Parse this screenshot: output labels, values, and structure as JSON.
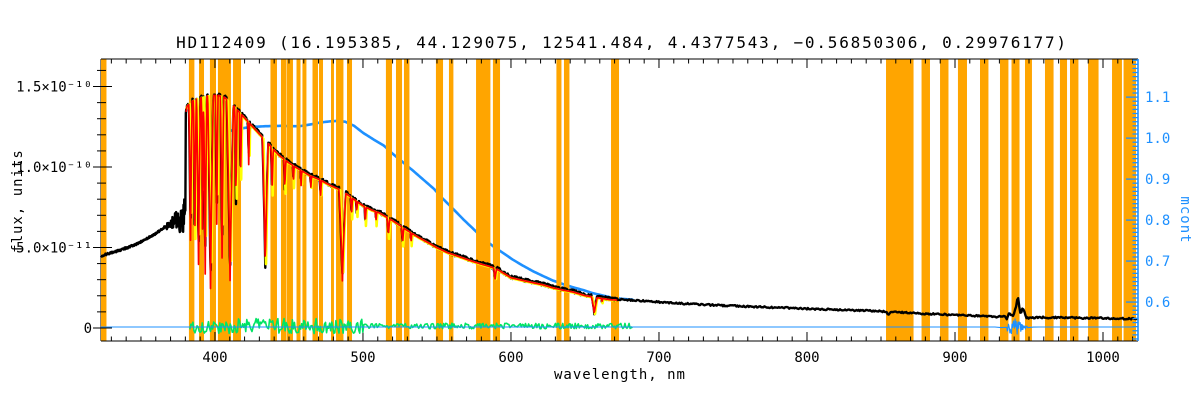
{
  "title": "HD112409  (16.195385, 44.129075, 12541.484, 4.4377543, −0.56850306, 0.29976177)",
  "axes": {
    "x": {
      "label": "wavelength, nm",
      "min": 323.0,
      "max": 1023.65,
      "major_ticks": [
        400,
        500,
        600,
        700,
        800,
        900,
        1000
      ],
      "major_tick_labels": [
        "400",
        "500",
        "600",
        "700",
        "800",
        "900",
        "1000"
      ],
      "minor_step": 10
    },
    "y_left": {
      "label": "flux, units",
      "units_scale": "1e-10",
      "min": -0.081,
      "max": 1.671,
      "major_ticks": [
        0,
        0.5,
        1.0,
        1.5
      ],
      "major_tick_labels": [
        "0",
        "5.0×10⁻¹¹",
        "1.0×10⁻¹⁰",
        "1.5×10⁻¹⁰"
      ],
      "minor_step": 0.1
    },
    "y_right": {
      "label": "mcont",
      "min": 0.505,
      "max": 1.193,
      "major_ticks": [
        0.6,
        0.7,
        0.8,
        0.9,
        1.0,
        1.1
      ],
      "major_tick_labels": [
        "0.6",
        "0.7",
        "0.8",
        "0.9",
        "1.0",
        "1.1"
      ],
      "minor_step": 0.01
    }
  },
  "colors": {
    "background": "#ffffff",
    "frame": "#000000",
    "band": "#ffa500",
    "observed": "#000000",
    "fit_red": "#ff0000",
    "fit_yellow": "#ffff00",
    "residual_green": "#00e464",
    "blue": "#1e90ff"
  },
  "chart_data": {
    "type": "line",
    "x_unit": "nm",
    "flux_units_scale": "1e-10",
    "masked_bands_nm": [
      [
        323.0,
        326.7
      ],
      [
        382.4,
        386.1
      ],
      [
        389.2,
        392.6
      ],
      [
        396.6,
        400.7
      ],
      [
        402.0,
        410.8
      ],
      [
        412.2,
        417.6
      ],
      [
        437.5,
        441.9
      ],
      [
        444.6,
        448.3
      ],
      [
        448.6,
        452.7
      ],
      [
        455.1,
        457.8
      ],
      [
        459.1,
        461.8
      ],
      [
        465.9,
        469.6
      ],
      [
        470.3,
        473.0
      ],
      [
        478.4,
        480.4
      ],
      [
        481.8,
        486.8
      ],
      [
        489.2,
        492.6
      ],
      [
        515.5,
        519.6
      ],
      [
        522.3,
        526.4
      ],
      [
        527.7,
        531.4
      ],
      [
        549.3,
        554.1
      ],
      [
        558.1,
        561.1
      ],
      [
        576.4,
        586.1
      ],
      [
        587.8,
        592.6
      ],
      [
        630.7,
        634.1
      ],
      [
        635.8,
        639.5
      ],
      [
        667.6,
        673.0
      ],
      [
        853.4,
        872.0
      ],
      [
        877.4,
        883.1
      ],
      [
        889.9,
        895.6
      ],
      [
        902.0,
        908.1
      ],
      [
        916.9,
        922.6
      ],
      [
        930.4,
        936.1
      ],
      [
        938.2,
        943.6
      ],
      [
        947.3,
        952.0
      ],
      [
        960.8,
        966.6
      ],
      [
        970.9,
        975.7
      ],
      [
        977.7,
        983.4
      ],
      [
        989.9,
        997.0
      ],
      [
        1006.1,
        1012.8
      ],
      [
        1013.9,
        1022.3
      ]
    ],
    "series": [
      {
        "name": "observed-spectrum",
        "color": "#000000",
        "yaxis": "flux",
        "pre_jump_points": [
          [
            323,
            0.447
          ],
          [
            328,
            0.462
          ],
          [
            334,
            0.478
          ],
          [
            340,
            0.497
          ],
          [
            346,
            0.516
          ],
          [
            352,
            0.544
          ],
          [
            358,
            0.576
          ],
          [
            363,
            0.606
          ],
          [
            367,
            0.63
          ],
          [
            370,
            0.648
          ],
          [
            373,
            0.66
          ],
          [
            376,
            0.672
          ],
          [
            379,
            0.69
          ]
        ],
        "noisy_blob": {
          "range": [
            362,
            380.2
          ],
          "max_amp": 0.115
        },
        "envelope_points": [
          [
            379,
            1.25
          ],
          [
            381,
            1.38
          ],
          [
            384,
            1.41
          ],
          [
            388,
            1.43
          ],
          [
            392,
            1.44
          ],
          [
            397,
            1.45
          ],
          [
            402,
            1.45
          ],
          [
            406,
            1.44
          ],
          [
            410,
            1.41
          ],
          [
            414,
            1.37
          ],
          [
            418,
            1.33
          ],
          [
            424,
            1.27
          ],
          [
            430,
            1.21
          ],
          [
            436,
            1.15
          ],
          [
            443,
            1.08
          ],
          [
            450,
            1.03
          ],
          [
            457,
            0.99
          ],
          [
            464,
            0.952
          ],
          [
            471,
            0.925
          ],
          [
            478,
            0.89
          ],
          [
            486,
            0.857
          ],
          [
            493,
            0.81
          ],
          [
            500,
            0.764
          ],
          [
            506,
            0.737
          ],
          [
            511,
            0.72
          ],
          [
            520,
            0.672
          ],
          [
            530,
            0.61
          ],
          [
            538,
            0.565
          ],
          [
            545,
            0.53
          ],
          [
            550,
            0.503
          ],
          [
            557,
            0.473
          ],
          [
            565,
            0.448
          ],
          [
            572,
            0.425
          ],
          [
            579,
            0.404
          ],
          [
            585,
            0.388
          ],
          [
            590,
            0.373
          ],
          [
            595,
            0.345
          ],
          [
            600,
            0.317
          ],
          [
            608,
            0.3
          ],
          [
            615,
            0.286
          ],
          [
            622,
            0.272
          ],
          [
            628,
            0.255
          ],
          [
            635,
            0.24
          ],
          [
            642,
            0.228
          ],
          [
            650,
            0.206
          ],
          [
            656,
            0.196
          ],
          [
            662,
            0.188
          ],
          [
            667,
            0.18
          ],
          [
            672,
            0.178
          ]
        ],
        "absorption_lines": [
          [
            383.5,
            1.1,
            0.55
          ],
          [
            386.4,
            0.9,
            0.48
          ],
          [
            388.9,
            1.3,
            0.4
          ],
          [
            391.6,
            0.7,
            0.62
          ],
          [
            393.4,
            1.1,
            0.34
          ],
          [
            397.0,
            1.9,
            0.25
          ],
          [
            401.2,
            0.9,
            0.65
          ],
          [
            404.8,
            1.1,
            0.44
          ],
          [
            410.2,
            2.3,
            0.3
          ],
          [
            414.2,
            0.8,
            0.78
          ],
          [
            417.3,
            0.7,
            0.92
          ],
          [
            422.8,
            0.6,
            1.02
          ],
          [
            434.0,
            2.0,
            0.38
          ],
          [
            438.6,
            0.8,
            0.84
          ],
          [
            447.2,
            0.7,
            0.86
          ],
          [
            453.0,
            0.5,
            0.9
          ],
          [
            458.2,
            0.5,
            0.89
          ],
          [
            464.8,
            0.5,
            0.88
          ],
          [
            471.4,
            0.6,
            0.83
          ],
          [
            486.1,
            2.3,
            0.298
          ],
          [
            492.3,
            0.6,
            0.7
          ],
          [
            495.8,
            0.5,
            0.72
          ],
          [
            501.6,
            0.6,
            0.66
          ],
          [
            508.8,
            0.5,
            0.66
          ],
          [
            517.2,
            0.9,
            0.58
          ],
          [
            526.8,
            0.8,
            0.53
          ],
          [
            532.5,
            0.5,
            0.53
          ],
          [
            589.3,
            1.0,
            0.31
          ],
          [
            656.3,
            1.9,
            0.093
          ],
          [
            661.5,
            0.5,
            0.165
          ]
        ],
        "tail_points": [
          [
            672,
            0.178
          ],
          [
            678,
            0.174
          ],
          [
            685,
            0.17
          ],
          [
            692,
            0.166
          ],
          [
            700,
            0.161
          ],
          [
            710,
            0.155
          ],
          [
            720,
            0.15
          ],
          [
            732,
            0.144
          ],
          [
            745,
            0.139
          ],
          [
            758,
            0.134
          ],
          [
            772,
            0.129
          ],
          [
            786,
            0.125
          ],
          [
            795,
            0.121
          ],
          [
            808,
            0.117
          ],
          [
            820,
            0.113
          ],
          [
            832,
            0.109
          ],
          [
            844,
            0.106
          ],
          [
            853,
            0.102
          ],
          [
            855,
            0.082
          ],
          [
            857,
            0.099
          ],
          [
            865,
            0.096
          ],
          [
            876,
            0.09
          ],
          [
            886,
            0.086
          ],
          [
            897,
            0.082
          ],
          [
            908,
            0.078
          ],
          [
            918,
            0.074
          ],
          [
            926,
            0.071
          ],
          [
            930,
            0.068
          ],
          [
            933,
            0.08
          ],
          [
            935,
            0.066
          ],
          [
            937,
            0.095
          ],
          [
            939,
            0.072
          ],
          [
            941,
            0.13
          ],
          [
            942.5,
            0.19
          ],
          [
            944,
            0.095
          ],
          [
            946,
            0.115
          ],
          [
            948,
            0.068
          ],
          [
            951,
            0.063
          ],
          [
            957,
            0.066
          ],
          [
            964,
            0.064
          ],
          [
            972,
            0.066
          ],
          [
            980,
            0.064
          ],
          [
            988,
            0.061
          ],
          [
            996,
            0.063
          ],
          [
            1004,
            0.06
          ],
          [
            1012,
            0.058
          ],
          [
            1023.6,
            0.056
          ]
        ]
      },
      {
        "name": "fit-red",
        "color": "#ff0000",
        "yaxis": "flux",
        "range": [
          380.5,
          672
        ]
      },
      {
        "name": "fit-yellow",
        "color": "#ffff00",
        "yaxis": "flux",
        "range": [
          380.8,
          671
        ]
      },
      {
        "name": "residual-green",
        "color": "#00e464",
        "yaxis": "flux",
        "range": [
          383,
          682
        ],
        "base_level": 0.012,
        "noise_amp_blue_end": 0.048,
        "noise_amp_red_end": 0.017,
        "amp_change_at": 500
      },
      {
        "name": "mcont-curve",
        "color": "#1e90ff",
        "yaxis": "mcont",
        "points": [
          [
            383,
            0.968
          ],
          [
            390,
            0.986
          ],
          [
            397,
            1.0
          ],
          [
            406,
            1.014
          ],
          [
            415,
            1.022
          ],
          [
            424,
            1.027
          ],
          [
            434,
            1.029
          ],
          [
            445,
            1.03
          ],
          [
            452,
            1.029
          ],
          [
            457,
            1.029
          ],
          [
            464,
            1.033
          ],
          [
            471,
            1.038
          ],
          [
            478,
            1.041
          ],
          [
            483,
            1.042
          ],
          [
            488,
            1.04
          ],
          [
            494,
            1.03
          ],
          [
            500,
            1.013
          ],
          [
            507,
            0.997
          ],
          [
            514,
            0.982
          ],
          [
            520,
            0.962
          ],
          [
            527,
            0.941
          ],
          [
            534,
            0.92
          ],
          [
            541,
            0.898
          ],
          [
            548,
            0.876
          ],
          [
            554,
            0.852
          ],
          [
            561,
            0.827
          ],
          [
            568,
            0.801
          ],
          [
            575,
            0.777
          ],
          [
            581,
            0.756
          ],
          [
            588,
            0.736
          ],
          [
            595,
            0.719
          ],
          [
            601,
            0.704
          ],
          [
            608,
            0.689
          ],
          [
            615,
            0.675
          ],
          [
            622,
            0.663
          ],
          [
            628,
            0.653
          ],
          [
            635,
            0.644
          ],
          [
            642,
            0.636
          ],
          [
            649,
            0.629
          ],
          [
            655,
            0.622
          ],
          [
            662,
            0.616
          ],
          [
            668,
            0.611
          ],
          [
            675,
            0.608
          ],
          [
            682,
            0.606
          ]
        ]
      },
      {
        "name": "zero-line",
        "color": "#1e90ff",
        "yaxis": "flux",
        "level": 0.006,
        "range": [
          323,
          1023.65
        ],
        "noise_burst": {
          "range": [
            928,
            954
          ],
          "center": 940,
          "sigma": 5.5,
          "max_amp": 0.058
        }
      }
    ]
  }
}
